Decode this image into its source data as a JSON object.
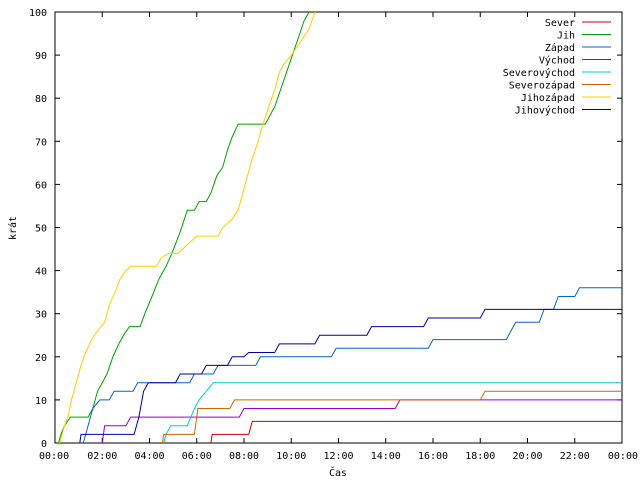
{
  "chart_data": {
    "type": "line",
    "title": "",
    "xlabel": "Čas",
    "ylabel": "krát",
    "xlim": [
      0,
      24
    ],
    "ylim": [
      0,
      100
    ],
    "grid": false,
    "legend_position": "top-right",
    "x_ticks": [
      "00:00",
      "02:00",
      "04:00",
      "06:00",
      "08:00",
      "10:00",
      "12:00",
      "14:00",
      "16:00",
      "18:00",
      "20:00",
      "22:00",
      "00:00"
    ],
    "y_ticks": [
      "0",
      "10",
      "20",
      "30",
      "40",
      "50",
      "60",
      "70",
      "80",
      "90",
      "100"
    ],
    "series": [
      {
        "name": "Sever",
        "color": "#cc0000",
        "points": [
          [
            6.6,
            0
          ],
          [
            6.65,
            2
          ],
          [
            8.2,
            2
          ],
          [
            8.35,
            5
          ],
          [
            24,
            5
          ]
        ]
      },
      {
        "name": "Jih",
        "color": "#00a000",
        "points": [
          [
            0.15,
            0
          ],
          [
            0.25,
            2
          ],
          [
            0.4,
            4
          ],
          [
            0.65,
            6
          ],
          [
            1.4,
            6
          ],
          [
            1.6,
            8
          ],
          [
            1.8,
            12
          ],
          [
            2.0,
            14
          ],
          [
            2.2,
            16
          ],
          [
            2.45,
            20
          ],
          [
            2.7,
            23
          ],
          [
            2.9,
            25
          ],
          [
            3.15,
            27
          ],
          [
            3.6,
            27
          ],
          [
            3.8,
            30
          ],
          [
            4.1,
            34
          ],
          [
            4.4,
            38
          ],
          [
            4.7,
            41
          ],
          [
            4.95,
            44
          ],
          [
            5.3,
            49
          ],
          [
            5.6,
            54
          ],
          [
            5.9,
            54
          ],
          [
            6.1,
            56
          ],
          [
            6.4,
            56
          ],
          [
            6.6,
            58
          ],
          [
            6.85,
            62
          ],
          [
            7.1,
            64
          ],
          [
            7.3,
            68
          ],
          [
            7.5,
            71
          ],
          [
            7.75,
            74
          ],
          [
            8.9,
            74
          ],
          [
            9.1,
            76
          ],
          [
            9.3,
            78
          ],
          [
            9.55,
            82
          ],
          [
            9.8,
            86
          ],
          [
            10.05,
            90
          ],
          [
            10.3,
            94
          ],
          [
            10.55,
            98
          ],
          [
            10.75,
            100
          ]
        ]
      },
      {
        "name": "Západ",
        "color": "#0066cc",
        "points": [
          [
            1.2,
            0
          ],
          [
            1.3,
            2
          ],
          [
            1.6,
            8
          ],
          [
            1.9,
            10
          ],
          [
            2.3,
            10
          ],
          [
            2.5,
            12
          ],
          [
            3.3,
            12
          ],
          [
            3.5,
            14
          ],
          [
            5.7,
            14
          ],
          [
            5.9,
            16
          ],
          [
            6.7,
            16
          ],
          [
            6.9,
            18
          ],
          [
            8.5,
            18
          ],
          [
            8.7,
            20
          ],
          [
            11.7,
            20
          ],
          [
            11.9,
            22
          ],
          [
            15.8,
            22
          ],
          [
            16.0,
            24
          ],
          [
            19.1,
            24
          ],
          [
            19.3,
            26
          ],
          [
            19.5,
            28
          ],
          [
            20.5,
            28
          ],
          [
            20.7,
            31
          ],
          [
            21.1,
            31
          ],
          [
            21.3,
            34
          ],
          [
            22.0,
            34
          ],
          [
            22.2,
            36
          ],
          [
            24,
            36
          ]
        ]
      },
      {
        "name": "Východ",
        "color": "#9900cc",
        "points": [
          [
            2.0,
            0
          ],
          [
            2.1,
            4
          ],
          [
            3.0,
            4
          ],
          [
            3.2,
            6
          ],
          [
            7.8,
            6
          ],
          [
            8.0,
            8
          ],
          [
            14.4,
            8
          ],
          [
            14.6,
            10
          ],
          [
            24,
            10
          ]
        ]
      },
      {
        "name": "Severovýchod",
        "color": "#00cccc",
        "points": [
          [
            4.6,
            0
          ],
          [
            4.7,
            2
          ],
          [
            4.9,
            4
          ],
          [
            5.6,
            4
          ],
          [
            5.9,
            8
          ],
          [
            6.1,
            10
          ],
          [
            6.4,
            12
          ],
          [
            6.7,
            14
          ],
          [
            24,
            14
          ]
        ]
      },
      {
        "name": "Severozápad",
        "color": "#cc6600",
        "points": [
          [
            4.55,
            0
          ],
          [
            4.6,
            2
          ],
          [
            5.9,
            2
          ],
          [
            6.05,
            8
          ],
          [
            7.4,
            8
          ],
          [
            7.6,
            10
          ],
          [
            18.0,
            10
          ],
          [
            18.2,
            12
          ],
          [
            24,
            12
          ]
        ]
      },
      {
        "name": "Jihozápad",
        "color": "#ffcc00",
        "points": [
          [
            0.2,
            0
          ],
          [
            0.4,
            4
          ],
          [
            0.55,
            6
          ],
          [
            0.7,
            10
          ],
          [
            0.9,
            14
          ],
          [
            1.1,
            18
          ],
          [
            1.3,
            21
          ],
          [
            1.55,
            24
          ],
          [
            1.8,
            26
          ],
          [
            2.1,
            28
          ],
          [
            2.3,
            32
          ],
          [
            2.55,
            35
          ],
          [
            2.75,
            38
          ],
          [
            3.0,
            40
          ],
          [
            3.2,
            41
          ],
          [
            4.3,
            41
          ],
          [
            4.5,
            43
          ],
          [
            4.8,
            44
          ],
          [
            5.2,
            44
          ],
          [
            5.6,
            46
          ],
          [
            6.0,
            48
          ],
          [
            6.9,
            48
          ],
          [
            7.1,
            50
          ],
          [
            7.5,
            52
          ],
          [
            7.75,
            54
          ],
          [
            7.95,
            58
          ],
          [
            8.15,
            62
          ],
          [
            8.35,
            66
          ],
          [
            8.6,
            70
          ],
          [
            8.8,
            74
          ],
          [
            9.05,
            78
          ],
          [
            9.3,
            82
          ],
          [
            9.5,
            86
          ],
          [
            9.7,
            88
          ],
          [
            10.0,
            90
          ],
          [
            10.25,
            92
          ],
          [
            10.5,
            94
          ],
          [
            10.75,
            96
          ],
          [
            11.0,
            100
          ]
        ]
      },
      {
        "name": "Jihovýchod",
        "color": "#000099",
        "points": [
          [
            1.05,
            0
          ],
          [
            1.1,
            2
          ],
          [
            3.35,
            2
          ],
          [
            3.55,
            6
          ],
          [
            3.75,
            12
          ],
          [
            3.95,
            14
          ],
          [
            5.1,
            14
          ],
          [
            5.3,
            16
          ],
          [
            6.2,
            16
          ],
          [
            6.4,
            18
          ],
          [
            7.3,
            18
          ],
          [
            7.5,
            20
          ],
          [
            8.0,
            20
          ],
          [
            8.2,
            21
          ],
          [
            9.3,
            21
          ],
          [
            9.5,
            23
          ],
          [
            11.0,
            23
          ],
          [
            11.2,
            25
          ],
          [
            13.2,
            25
          ],
          [
            13.4,
            27
          ],
          [
            15.6,
            27
          ],
          [
            15.8,
            29
          ],
          [
            18.0,
            29
          ],
          [
            18.2,
            31
          ],
          [
            24,
            31
          ]
        ]
      }
    ]
  }
}
